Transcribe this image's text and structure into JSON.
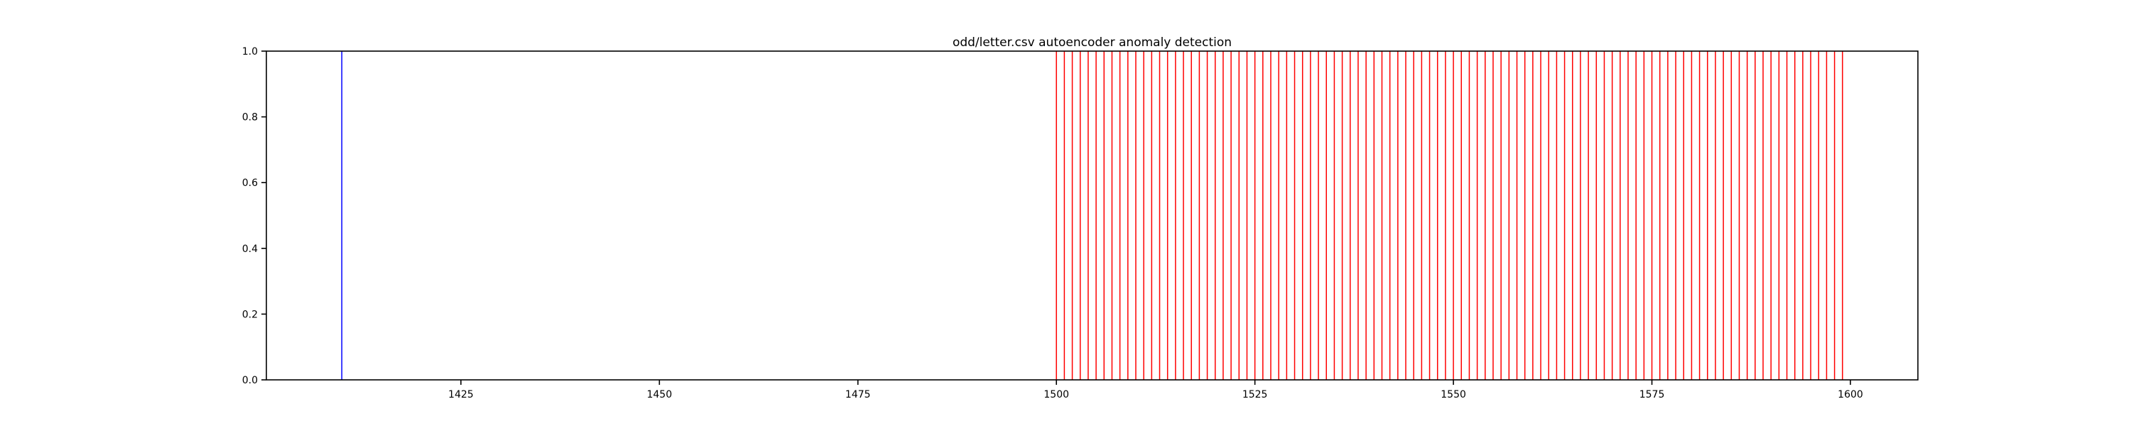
{
  "chart_data": {
    "type": "bar",
    "title": "odd/letter.csv autoencoder anomaly detection",
    "xlabel": "",
    "ylabel": "",
    "xlim": [
      1400.5,
      1608.5
    ],
    "ylim": [
      0,
      1.0
    ],
    "xticks": [
      1425,
      1450,
      1475,
      1500,
      1525,
      1550,
      1575,
      1600
    ],
    "yticks": [
      0.0,
      0.2,
      0.4,
      0.6,
      0.8,
      1.0
    ],
    "grid": false,
    "series": [
      {
        "color": "#0000ff",
        "x": [
          1410
        ],
        "values": [
          1.0
        ]
      },
      {
        "color": "#ff0000",
        "x": [
          1500,
          1501,
          1502,
          1503,
          1504,
          1505,
          1506,
          1507,
          1508,
          1509,
          1510,
          1511,
          1512,
          1513,
          1514,
          1515,
          1516,
          1517,
          1518,
          1519,
          1520,
          1521,
          1522,
          1523,
          1524,
          1525,
          1526,
          1527,
          1528,
          1529,
          1530,
          1531,
          1532,
          1533,
          1534,
          1535,
          1536,
          1537,
          1538,
          1539,
          1540,
          1541,
          1542,
          1543,
          1544,
          1545,
          1546,
          1547,
          1548,
          1549,
          1550,
          1551,
          1552,
          1553,
          1554,
          1555,
          1556,
          1557,
          1558,
          1559,
          1560,
          1561,
          1562,
          1563,
          1564,
          1565,
          1566,
          1567,
          1568,
          1569,
          1570,
          1571,
          1572,
          1573,
          1574,
          1575,
          1576,
          1577,
          1578,
          1579,
          1580,
          1581,
          1582,
          1583,
          1584,
          1585,
          1586,
          1587,
          1588,
          1589,
          1590,
          1591,
          1592,
          1593,
          1594,
          1595,
          1596,
          1597,
          1598,
          1599
        ],
        "values": [
          1.0,
          1.0,
          1.0,
          1.0,
          1.0,
          1.0,
          1.0,
          1.0,
          1.0,
          1.0,
          1.0,
          1.0,
          1.0,
          1.0,
          1.0,
          1.0,
          1.0,
          1.0,
          1.0,
          1.0,
          1.0,
          1.0,
          1.0,
          1.0,
          1.0,
          1.0,
          1.0,
          1.0,
          1.0,
          1.0,
          1.0,
          1.0,
          1.0,
          1.0,
          1.0,
          1.0,
          1.0,
          1.0,
          1.0,
          1.0,
          1.0,
          1.0,
          1.0,
          1.0,
          1.0,
          1.0,
          1.0,
          1.0,
          1.0,
          1.0,
          1.0,
          1.0,
          1.0,
          1.0,
          1.0,
          1.0,
          1.0,
          1.0,
          1.0,
          1.0,
          1.0,
          1.0,
          1.0,
          1.0,
          1.0,
          1.0,
          1.0,
          1.0,
          1.0,
          1.0,
          1.0,
          1.0,
          1.0,
          1.0,
          1.0,
          1.0,
          1.0,
          1.0,
          1.0,
          1.0,
          1.0,
          1.0,
          1.0,
          1.0,
          1.0,
          1.0,
          1.0,
          1.0,
          1.0,
          1.0,
          1.0,
          1.0,
          1.0,
          1.0,
          1.0,
          1.0,
          1.0,
          1.0,
          1.0,
          1.0
        ]
      }
    ]
  }
}
